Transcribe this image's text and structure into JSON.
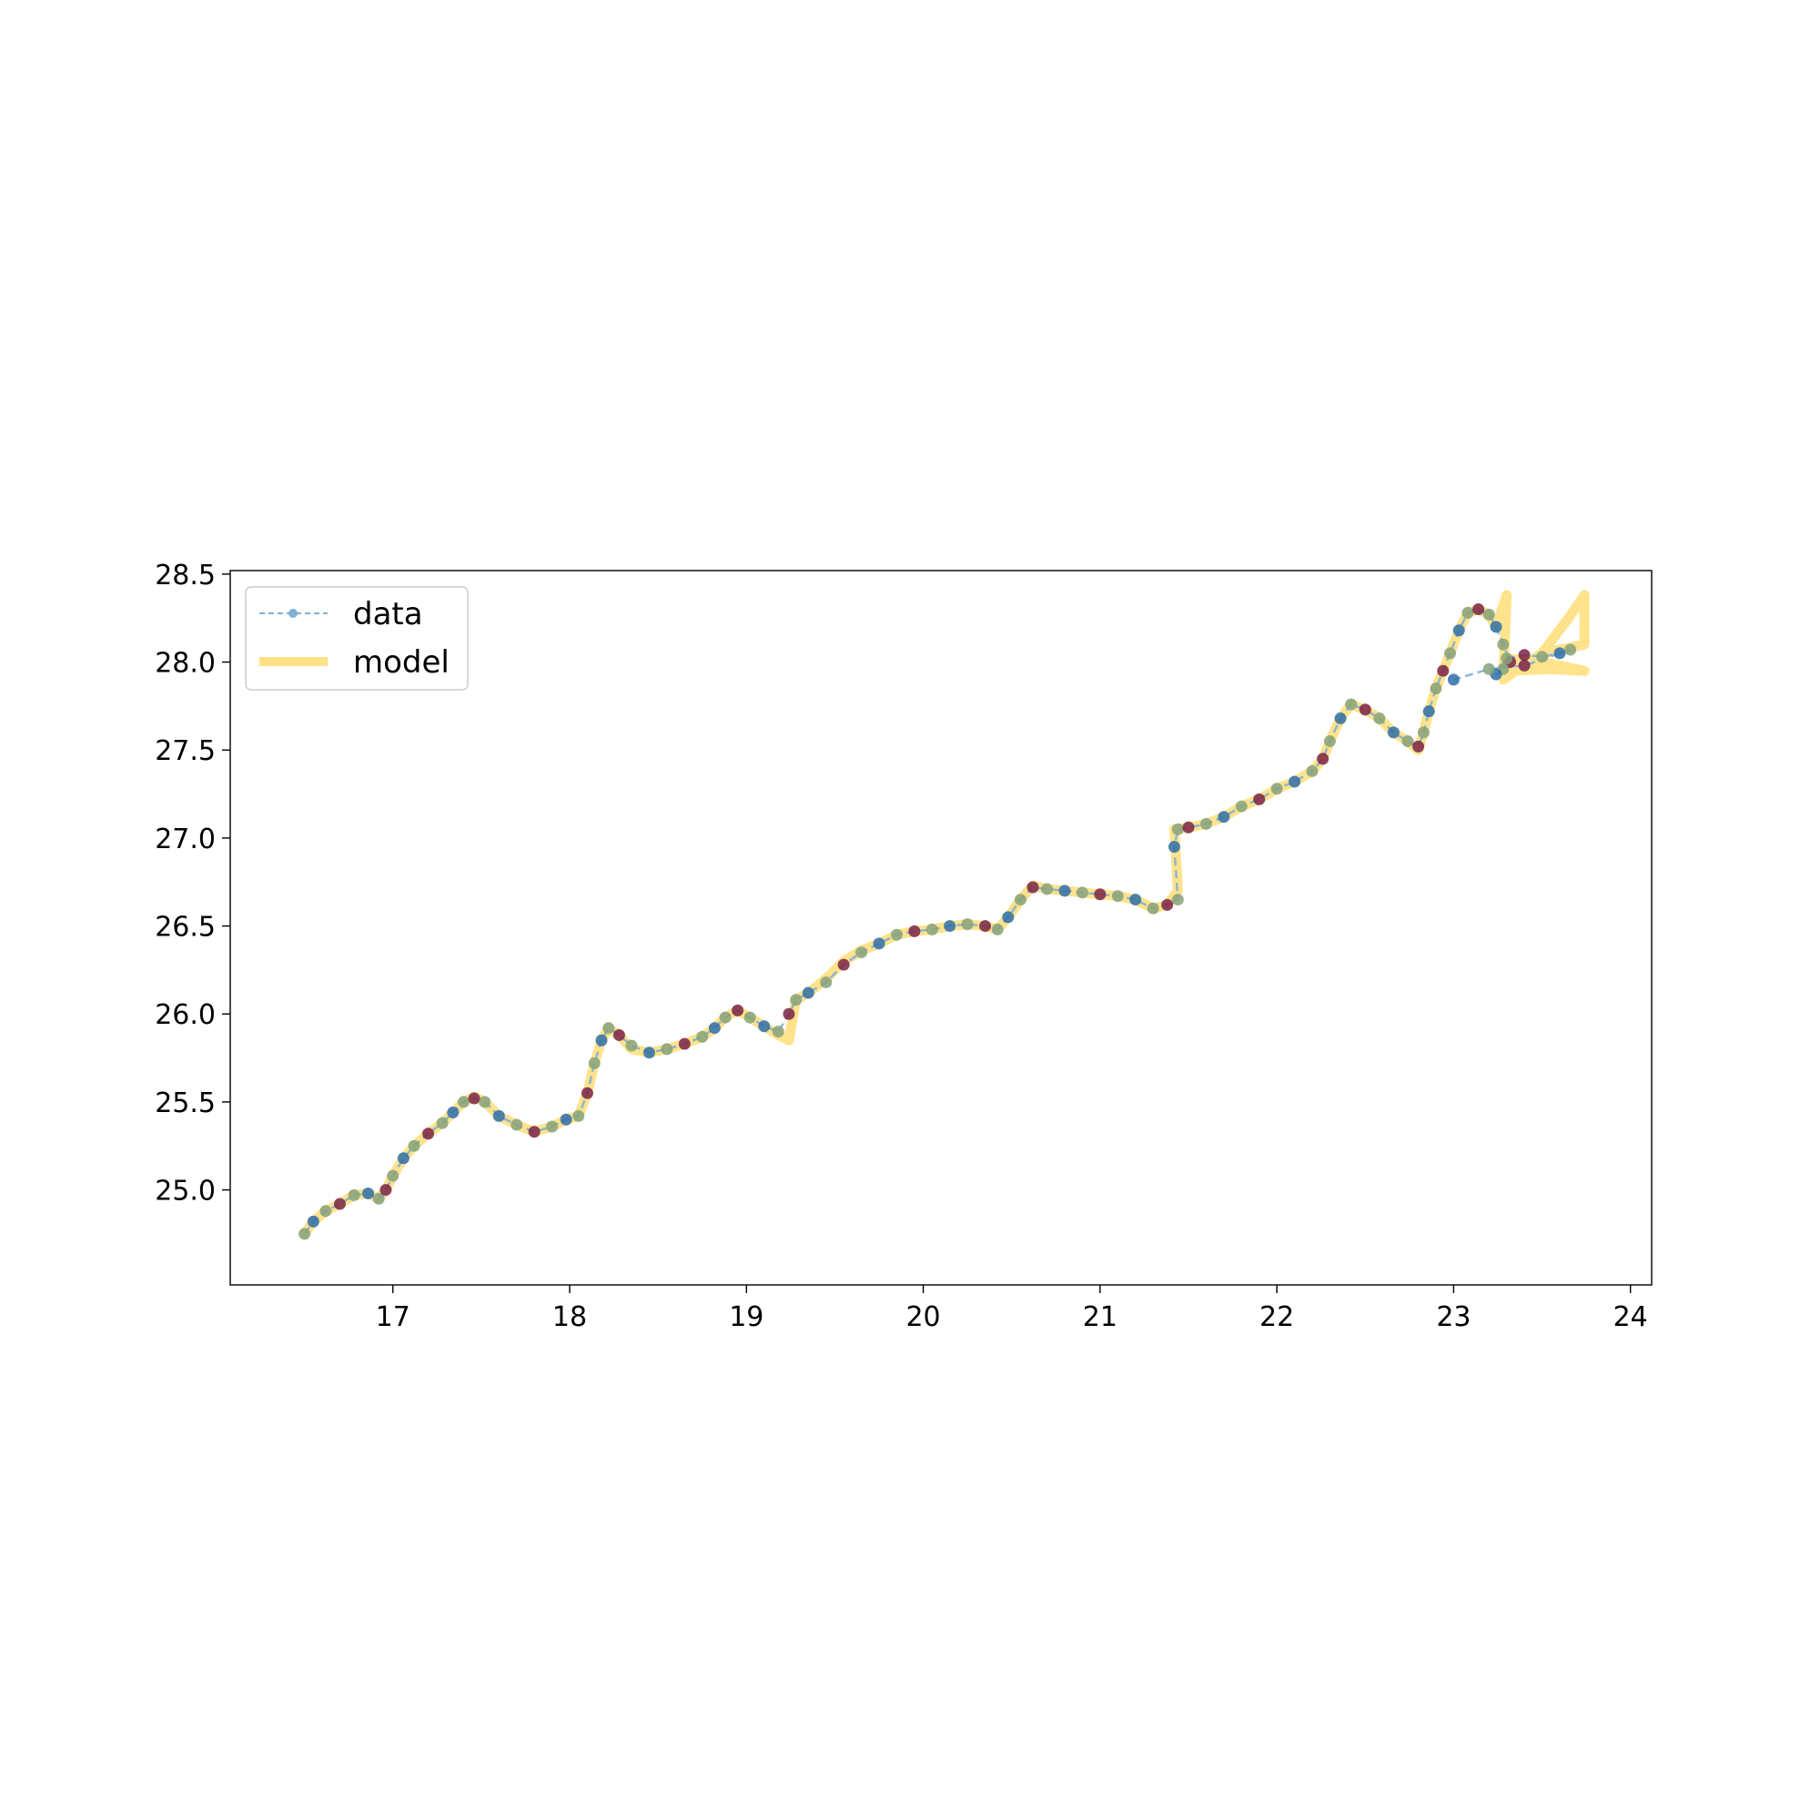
{
  "chart_data": {
    "type": "line",
    "title": "",
    "xlabel": "",
    "ylabel": "",
    "xlim": [
      16.08,
      24.12
    ],
    "ylim": [
      24.46,
      28.52
    ],
    "xticks": [
      {
        "value": 17,
        "label": "17"
      },
      {
        "value": 18,
        "label": "18"
      },
      {
        "value": 19,
        "label": "19"
      },
      {
        "value": 20,
        "label": "20"
      },
      {
        "value": 21,
        "label": "21"
      },
      {
        "value": 22,
        "label": "22"
      },
      {
        "value": 23,
        "label": "23"
      },
      {
        "value": 24,
        "label": "24"
      }
    ],
    "yticks": [
      {
        "value": 25.0,
        "label": "25.0"
      },
      {
        "value": 25.5,
        "label": "25.5"
      },
      {
        "value": 26.0,
        "label": "26.0"
      },
      {
        "value": 26.5,
        "label": "26.5"
      },
      {
        "value": 27.0,
        "label": "27.0"
      },
      {
        "value": 27.5,
        "label": "27.5"
      },
      {
        "value": 28.0,
        "label": "28.0"
      },
      {
        "value": 28.5,
        "label": "28.5"
      }
    ],
    "grid": false,
    "legend": {
      "placement": "top-left",
      "entries": [
        "data",
        "model"
      ]
    },
    "colors": {
      "data_line": "#7fb0d6",
      "data_point_blue": "#2f6ea8",
      "data_point_olive": "#87a27a",
      "data_point_maroon": "#7a2346",
      "model_line": "#ffd966"
    },
    "series": [
      {
        "name": "data",
        "style": "dashed line with circle markers",
        "x": [
          16.5,
          16.55,
          16.62,
          16.7,
          16.78,
          16.86,
          16.92,
          16.96,
          17.0,
          17.06,
          17.12,
          17.2,
          17.28,
          17.34,
          17.4,
          17.46,
          17.52,
          17.6,
          17.7,
          17.8,
          17.9,
          17.98,
          18.05,
          18.1,
          18.14,
          18.18,
          18.22,
          18.28,
          18.35,
          18.45,
          18.55,
          18.65,
          18.75,
          18.82,
          18.88,
          18.95,
          19.02,
          19.1,
          19.18,
          19.24,
          19.28,
          19.35,
          19.45,
          19.55,
          19.65,
          19.75,
          19.85,
          19.95,
          20.05,
          20.15,
          20.25,
          20.35,
          20.42,
          20.48,
          20.55,
          20.62,
          20.7,
          20.8,
          20.9,
          21.0,
          21.1,
          21.2,
          21.3,
          21.38,
          21.44,
          21.42,
          21.44,
          21.5,
          21.6,
          21.7,
          21.8,
          21.9,
          22.0,
          22.1,
          22.2,
          22.26,
          22.3,
          22.36,
          22.42,
          22.5,
          22.58,
          22.66,
          22.74,
          22.8,
          22.83,
          22.86,
          22.9,
          22.94,
          22.98,
          23.03,
          23.08,
          23.14,
          23.2,
          23.24,
          23.28,
          23.32,
          23.28,
          23.24,
          23.3,
          23.4,
          23.5,
          23.6,
          23.66,
          23.4,
          23.2,
          23.0
        ],
        "y": [
          24.75,
          24.82,
          24.88,
          24.92,
          24.97,
          24.98,
          24.95,
          25.0,
          25.08,
          25.18,
          25.25,
          25.32,
          25.38,
          25.44,
          25.5,
          25.52,
          25.5,
          25.42,
          25.37,
          25.33,
          25.36,
          25.4,
          25.42,
          25.55,
          25.72,
          25.85,
          25.92,
          25.88,
          25.82,
          25.78,
          25.8,
          25.83,
          25.87,
          25.92,
          25.98,
          26.02,
          25.98,
          25.93,
          25.9,
          26.0,
          26.08,
          26.12,
          26.18,
          26.28,
          26.35,
          26.4,
          26.45,
          26.47,
          26.48,
          26.5,
          26.51,
          26.5,
          26.48,
          26.55,
          26.65,
          26.72,
          26.71,
          26.7,
          26.69,
          26.68,
          26.67,
          26.65,
          26.6,
          26.62,
          26.65,
          26.95,
          27.05,
          27.06,
          27.08,
          27.12,
          27.18,
          27.22,
          27.28,
          27.32,
          27.38,
          27.45,
          27.55,
          27.68,
          27.76,
          27.73,
          27.68,
          27.6,
          27.55,
          27.52,
          27.6,
          27.72,
          27.85,
          27.95,
          28.05,
          28.18,
          28.28,
          28.3,
          28.27,
          28.2,
          28.1,
          28.0,
          27.96,
          27.93,
          28.02,
          28.04,
          28.03,
          28.05,
          28.07,
          27.98,
          27.96,
          27.9
        ]
      },
      {
        "name": "model",
        "style": "thick translucent line",
        "x": [
          16.5,
          16.55,
          16.62,
          16.7,
          16.78,
          16.86,
          16.92,
          16.96,
          17.0,
          17.06,
          17.12,
          17.2,
          17.28,
          17.34,
          17.4,
          17.46,
          17.52,
          17.6,
          17.7,
          17.8,
          17.9,
          17.98,
          18.05,
          18.1,
          18.14,
          18.18,
          18.22,
          18.28,
          18.35,
          18.45,
          18.55,
          18.65,
          18.75,
          18.82,
          18.88,
          18.95,
          19.02,
          19.1,
          19.18,
          19.24,
          19.28,
          19.35,
          19.45,
          19.55,
          19.65,
          19.75,
          19.85,
          19.95,
          20.05,
          20.15,
          20.25,
          20.35,
          20.42,
          20.48,
          20.55,
          20.62,
          20.7,
          20.8,
          20.9,
          21.0,
          21.1,
          21.2,
          21.3,
          21.38,
          21.44,
          21.42,
          21.44,
          21.5,
          21.6,
          21.7,
          21.8,
          21.9,
          22.0,
          22.1,
          22.2,
          22.26,
          22.3,
          22.36,
          22.42,
          22.5,
          22.58,
          22.66,
          22.74,
          22.8,
          22.83,
          22.86,
          22.9,
          22.94,
          22.98,
          23.03,
          23.08,
          23.14,
          23.2,
          23.24,
          23.3,
          23.28,
          23.35,
          23.5,
          23.65,
          23.74,
          23.74,
          23.55,
          23.3,
          23.55,
          23.74,
          23.5,
          23.3
        ],
        "y": [
          24.75,
          24.82,
          24.88,
          24.92,
          24.97,
          24.98,
          24.95,
          25.0,
          25.08,
          25.18,
          25.25,
          25.32,
          25.38,
          25.44,
          25.5,
          25.53,
          25.5,
          25.42,
          25.37,
          25.33,
          25.36,
          25.4,
          25.42,
          25.55,
          25.72,
          25.85,
          25.92,
          25.88,
          25.8,
          25.78,
          25.8,
          25.83,
          25.87,
          25.92,
          25.98,
          26.02,
          25.98,
          25.93,
          25.88,
          25.85,
          26.08,
          26.12,
          26.2,
          26.3,
          26.36,
          26.4,
          26.45,
          26.47,
          26.48,
          26.5,
          26.51,
          26.5,
          26.48,
          26.55,
          26.65,
          26.73,
          26.71,
          26.7,
          26.69,
          26.68,
          26.67,
          26.65,
          26.6,
          26.62,
          26.7,
          27.05,
          27.05,
          27.06,
          27.08,
          27.12,
          27.18,
          27.22,
          27.28,
          27.32,
          27.38,
          27.45,
          27.55,
          27.68,
          27.76,
          27.73,
          27.68,
          27.6,
          27.55,
          27.5,
          27.6,
          27.72,
          27.85,
          27.95,
          28.05,
          28.18,
          28.28,
          28.3,
          28.27,
          28.2,
          28.38,
          27.9,
          27.95,
          28.05,
          28.25,
          28.38,
          28.1,
          28.06,
          27.95,
          27.96,
          27.95,
          28.0,
          28.02
        ]
      }
    ]
  }
}
